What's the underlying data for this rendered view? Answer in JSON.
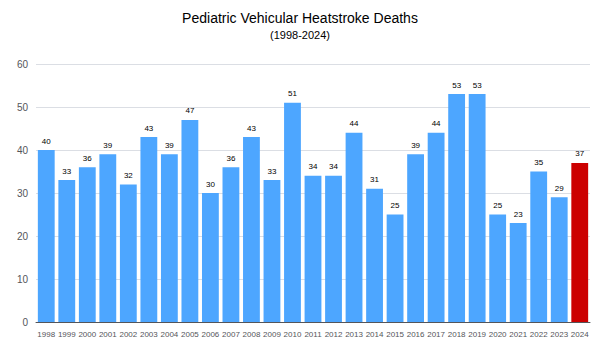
{
  "chart_data": {
    "type": "bar",
    "title": "Pediatric Vehicular Heatstroke Deaths",
    "subtitle": "(1998-2024)",
    "categories": [
      "1998",
      "1999",
      "2000",
      "2001",
      "2002",
      "2003",
      "2004",
      "2005",
      "2006",
      "2007",
      "2008",
      "2009",
      "2010",
      "2011",
      "2012",
      "2013",
      "2014",
      "2015",
      "2016",
      "2017",
      "2018",
      "2019",
      "2020",
      "2021",
      "2022",
      "2023",
      "2024"
    ],
    "values": [
      40,
      33,
      36,
      39,
      32,
      43,
      39,
      47,
      30,
      36,
      43,
      33,
      51,
      34,
      34,
      44,
      31,
      25,
      39,
      44,
      53,
      53,
      25,
      23,
      35,
      29,
      37
    ],
    "colors": [
      "#4da6ff",
      "#4da6ff",
      "#4da6ff",
      "#4da6ff",
      "#4da6ff",
      "#4da6ff",
      "#4da6ff",
      "#4da6ff",
      "#4da6ff",
      "#4da6ff",
      "#4da6ff",
      "#4da6ff",
      "#4da6ff",
      "#4da6ff",
      "#4da6ff",
      "#4da6ff",
      "#4da6ff",
      "#4da6ff",
      "#4da6ff",
      "#4da6ff",
      "#4da6ff",
      "#4da6ff",
      "#4da6ff",
      "#4da6ff",
      "#4da6ff",
      "#4da6ff",
      "#cc0000"
    ],
    "ylim": [
      0,
      60
    ],
    "yticks": [
      0,
      10,
      20,
      30,
      40,
      50,
      60
    ],
    "grid": true,
    "data_labels": true
  }
}
